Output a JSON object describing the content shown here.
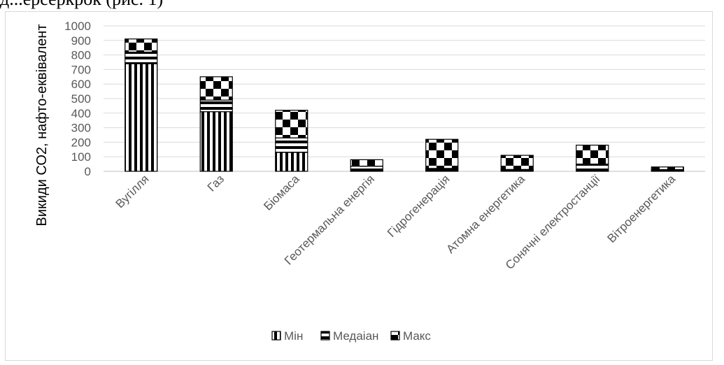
{
  "header_fragment": "д...ерсеркрок (рис. 1)",
  "chart_data": {
    "type": "bar",
    "stacked": true,
    "categories": [
      "Вугілля",
      "Газ",
      "Біомаса",
      "Геотермальна енергія",
      "Гідрогенерація",
      "Атомна енергетика",
      "Сонячні електростанції",
      "Вітроенергетика"
    ],
    "series": [
      {
        "name": "Мін",
        "values": [
          740,
          410,
          130,
          5,
          5,
          3,
          5,
          2
        ]
      },
      {
        "name": "Медаіан",
        "values": [
          80,
          80,
          100,
          30,
          15,
          10,
          45,
          10
        ]
      },
      {
        "name": "Макс",
        "values": [
          90,
          160,
          190,
          45,
          200,
          97,
          130,
          18
        ]
      }
    ],
    "ylabel": "Викиди СО2, нафто-еквівалент",
    "xlabel": "",
    "ylim": [
      0,
      1000
    ],
    "yticks": [
      0,
      100,
      200,
      300,
      400,
      500,
      600,
      700,
      800,
      900,
      1000
    ],
    "grid": true,
    "legend_position": "bottom"
  }
}
